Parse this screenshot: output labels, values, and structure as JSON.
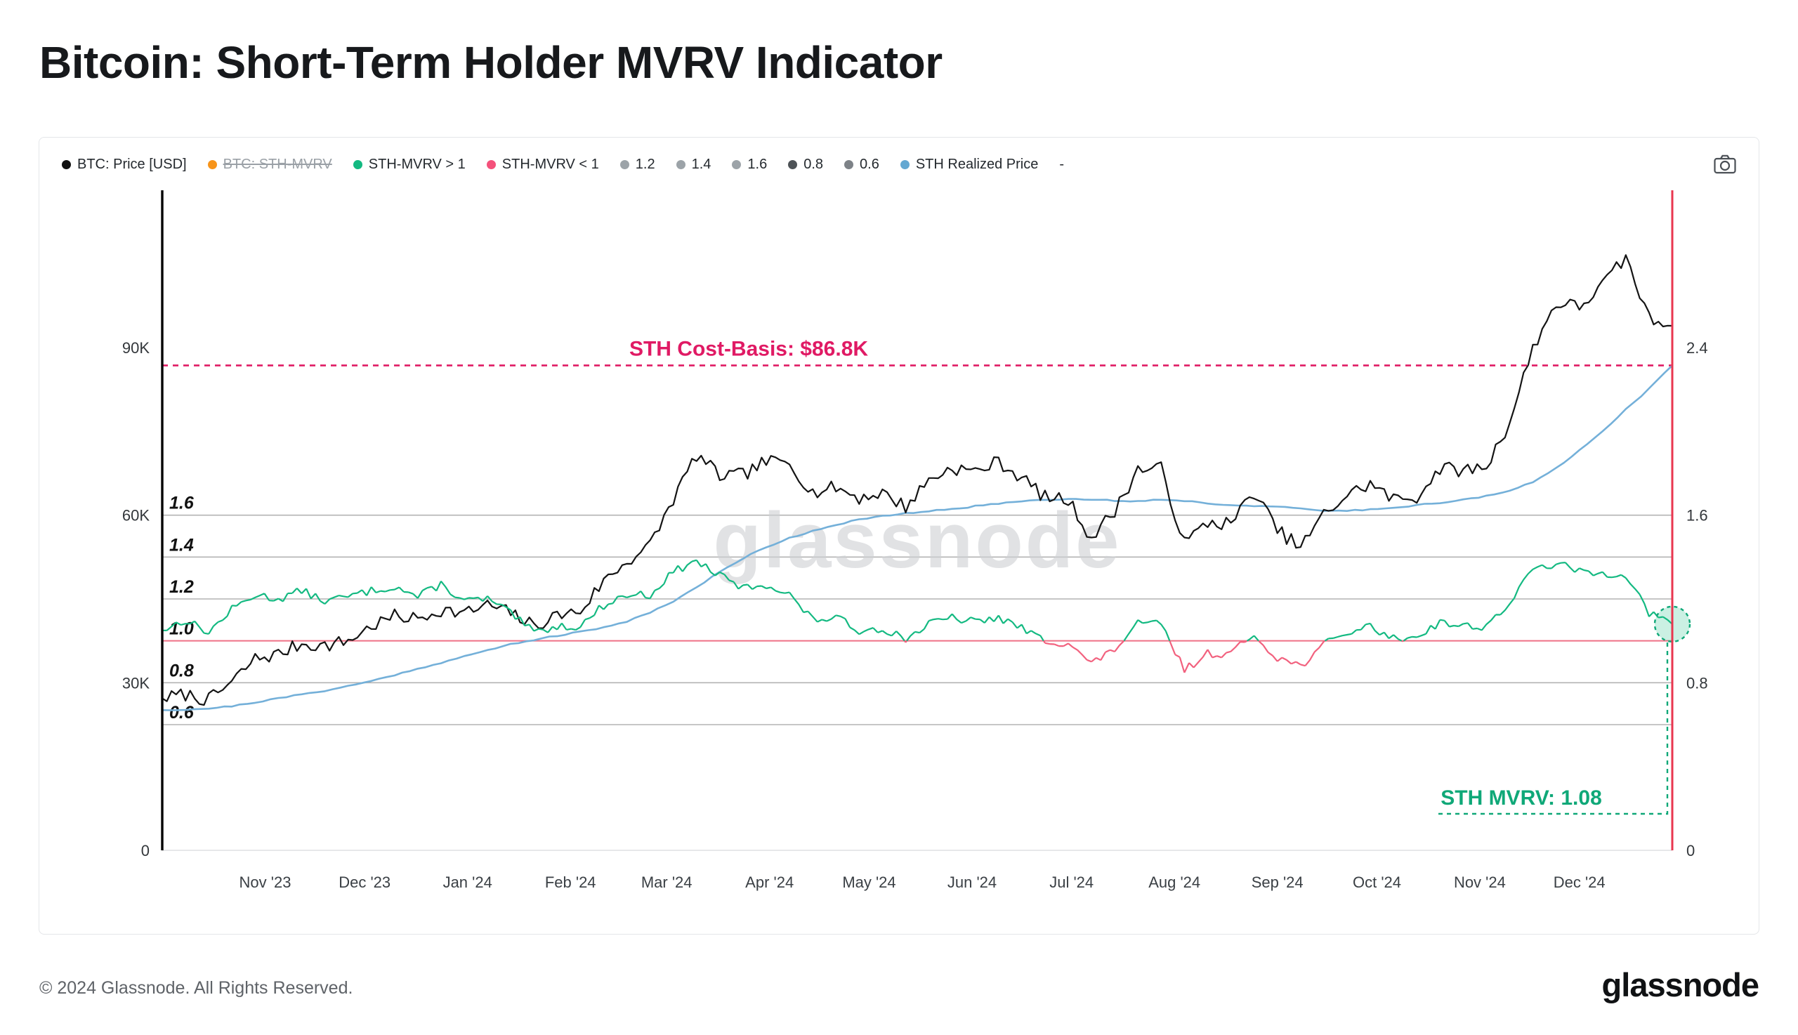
{
  "page": {
    "title": "Bitcoin: Short-Term Holder MVRV Indicator",
    "footer_copyright": "© 2024 Glassnode. All Rights Reserved.",
    "brand": "glassnode"
  },
  "legend": {
    "items": [
      {
        "label": "BTC: Price [USD]",
        "color": "#111111",
        "disabled": false
      },
      {
        "label": "BTC: STH-MVRV",
        "color": "#f7941a",
        "disabled": true
      },
      {
        "label": "STH-MVRV > 1",
        "color": "#13b981",
        "disabled": false
      },
      {
        "label": "STH-MVRV < 1",
        "color": "#f4517b",
        "disabled": false
      },
      {
        "label": "1.2",
        "color": "#9ca3a8",
        "disabled": false
      },
      {
        "label": "1.4",
        "color": "#9ca3a8",
        "disabled": false
      },
      {
        "label": "1.6",
        "color": "#9ca3a8",
        "disabled": false
      },
      {
        "label": "0.8",
        "color": "#4d5256",
        "disabled": false
      },
      {
        "label": "0.6",
        "color": "#7d8287",
        "disabled": false
      },
      {
        "label": "STH Realized Price",
        "color": "#64a8d2",
        "disabled": false
      },
      {
        "label": "-",
        "color": null,
        "disabled": false
      }
    ]
  },
  "chart_data": {
    "type": "line",
    "title": "Bitcoin: Short-Term Holder MVRV Indicator",
    "watermark": "glassnode",
    "x_domain_days": [
      0,
      455
    ],
    "sample_interval_days": 7,
    "x_ticks": [
      {
        "label": "Nov '23",
        "day": 31
      },
      {
        "label": "Dec '23",
        "day": 61
      },
      {
        "label": "Jan '24",
        "day": 92
      },
      {
        "label": "Feb '24",
        "day": 123
      },
      {
        "label": "Mar '24",
        "day": 152
      },
      {
        "label": "Apr '24",
        "day": 183
      },
      {
        "label": "May '24",
        "day": 213
      },
      {
        "label": "Jun '24",
        "day": 244
      },
      {
        "label": "Jul '24",
        "day": 274
      },
      {
        "label": "Aug '24",
        "day": 305
      },
      {
        "label": "Sep '24",
        "day": 336
      },
      {
        "label": "Oct '24",
        "day": 366
      },
      {
        "label": "Nov '24",
        "day": 397
      },
      {
        "label": "Dec '24",
        "day": 427
      }
    ],
    "left_axis": {
      "title": "BTC Price [USD]",
      "ticks": [
        {
          "label": "90K",
          "value": 90000
        },
        {
          "label": "60K",
          "value": 60000
        },
        {
          "label": "30K",
          "value": 30000
        },
        {
          "label": "0",
          "value": 0
        }
      ]
    },
    "right_axis": {
      "title": "STH-MVRV",
      "ticks": [
        {
          "label": "2.4",
          "value": 2.4
        },
        {
          "label": "1.6",
          "value": 1.6
        },
        {
          "label": "0.8",
          "value": 0.8
        },
        {
          "label": "0",
          "value": 0
        }
      ]
    },
    "mvrv_gridlines": {
      "levels": [
        {
          "label": "1.6",
          "value": 1.6,
          "highlight": false
        },
        {
          "label": "1.4",
          "value": 1.4,
          "highlight": false
        },
        {
          "label": "1.2",
          "value": 1.2,
          "highlight": false
        },
        {
          "label": "1.0",
          "value": 1.0,
          "highlight": true
        },
        {
          "label": "0.8",
          "value": 0.8,
          "highlight": false
        },
        {
          "label": "0.6",
          "value": 0.6,
          "highlight": false
        }
      ]
    },
    "annotations": {
      "cost_basis": {
        "label": "STH Cost-Basis: $86.8K",
        "value_usd": 86800,
        "color": "#e01a64"
      },
      "current_mvrv": {
        "label": "STH MVRV: 1.08",
        "value": 1.08,
        "color": "#0fa878"
      }
    },
    "colors": {
      "gridline": "#b3b3b3",
      "unity_line": "#ef7186",
      "vertical_marker": "#e8364f",
      "axis_spine": "#000000",
      "watermark": "#cfd1d4"
    },
    "series": [
      {
        "name": "BTC: Price [USD]",
        "axis": "left",
        "unit": "USD (thousands)",
        "color": "#141414",
        "values_usd_k": [
          27.2,
          27.9,
          26.9,
          30.1,
          34.3,
          35.1,
          37.0,
          36.6,
          37.5,
          40.1,
          41.9,
          41.4,
          43.1,
          42.4,
          43.9,
          42.5,
          40.1,
          42.1,
          42.8,
          48.2,
          51.7,
          54.6,
          62.9,
          70.8,
          67.0,
          67.2,
          69.6,
          69.4,
          64.0,
          65.0,
          63.1,
          64.0,
          61.5,
          66.3,
          68.5,
          67.8,
          69.6,
          66.7,
          63.2,
          62.7,
          55.9,
          60.8,
          68.2,
          68.3,
          54.9,
          58.7,
          58.5,
          64.2,
          57.3,
          54.2,
          60.1,
          63.6,
          65.6,
          62.8,
          63.2,
          68.4,
          68.0,
          68.7,
          76.7,
          90.0,
          98.0,
          97.3,
          101.2,
          106.1,
          95.2,
          93.9
        ]
      },
      {
        "name": "STH Realized Price",
        "axis": "left",
        "unit": "USD (thousands)",
        "color": "#74b0d9",
        "values_usd_k": [
          25.1,
          25.2,
          25.4,
          25.8,
          26.5,
          27.2,
          27.9,
          28.6,
          29.4,
          30.3,
          31.4,
          32.5,
          33.6,
          34.7,
          35.8,
          36.9,
          37.7,
          38.4,
          39.1,
          39.9,
          41.0,
          42.6,
          44.6,
          47.1,
          49.8,
          52.3,
          54.3,
          55.9,
          57.2,
          58.3,
          59.2,
          59.8,
          60.3,
          60.7,
          61.1,
          61.6,
          62.1,
          62.5,
          62.8,
          62.9,
          62.8,
          62.6,
          62.5,
          62.8,
          62.6,
          62.1,
          61.8,
          61.7,
          61.5,
          61.1,
          60.8,
          60.8,
          61.0,
          61.4,
          61.8,
          62.2,
          62.8,
          63.4,
          64.3,
          65.9,
          68.4,
          71.6,
          75.1,
          78.9,
          82.6,
          86.8
        ]
      },
      {
        "name": "STH-MVRV",
        "axis": "right",
        "unit": "ratio",
        "color_above_1": "#13b981",
        "color_below_1": "#f2617e",
        "values": [
          1.05,
          1.1,
          1.04,
          1.15,
          1.22,
          1.2,
          1.24,
          1.19,
          1.21,
          1.24,
          1.26,
          1.21,
          1.27,
          1.19,
          1.2,
          1.13,
          1.04,
          1.07,
          1.07,
          1.17,
          1.22,
          1.22,
          1.33,
          1.38,
          1.31,
          1.25,
          1.27,
          1.22,
          1.1,
          1.11,
          1.05,
          1.06,
          1.01,
          1.08,
          1.11,
          1.09,
          1.11,
          1.06,
          1.0,
          0.99,
          0.89,
          0.96,
          1.08,
          1.08,
          0.86,
          0.94,
          0.94,
          1.03,
          0.92,
          0.88,
          0.98,
          1.04,
          1.07,
          1.01,
          1.02,
          1.09,
          1.07,
          1.07,
          1.18,
          1.34,
          1.37,
          1.33,
          1.32,
          1.32,
          1.13,
          1.08
        ]
      }
    ]
  }
}
